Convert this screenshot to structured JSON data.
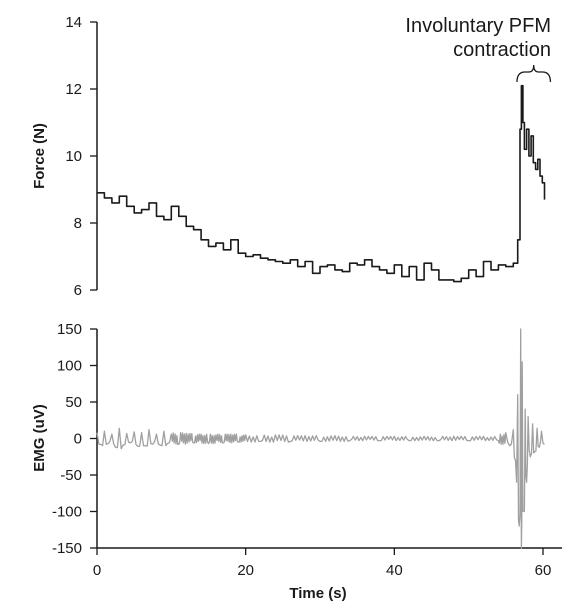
{
  "chart_data": [
    {
      "type": "line",
      "ylabel": "Force (N)",
      "xlabel": "",
      "xlim": [
        0,
        60
      ],
      "ylim": [
        6,
        14
      ],
      "yticks": [
        6,
        8,
        10,
        12,
        14
      ],
      "annotation": {
        "text_lines": [
          "Involuntary PFM",
          "contraction"
        ],
        "x_range": [
          56.5,
          61
        ]
      },
      "series": [
        {
          "color": "#1a1a1a",
          "x": [
            0,
            1,
            2,
            3,
            4,
            5,
            6,
            7,
            8,
            9,
            10,
            11,
            12,
            13,
            14,
            15,
            16,
            17,
            18,
            19,
            20,
            21,
            22,
            23,
            24,
            25,
            26,
            27,
            28,
            29,
            30,
            31,
            32,
            33,
            34,
            35,
            36,
            37,
            38,
            39,
            40,
            41,
            42,
            43,
            44,
            45,
            46,
            47,
            48,
            49,
            50,
            51,
            52,
            53,
            54,
            55,
            56,
            56.6,
            56.9,
            57.1,
            57.3,
            57.5,
            57.8,
            58.1,
            58.4,
            58.7,
            59,
            59.3,
            59.6,
            59.9,
            60.2
          ],
          "y": [
            8.9,
            8.75,
            8.6,
            8.8,
            8.5,
            8.3,
            8.4,
            8.6,
            8.2,
            8.1,
            8.5,
            8.2,
            7.9,
            7.8,
            7.5,
            7.3,
            7.4,
            7.2,
            7.5,
            7.1,
            7.0,
            7.05,
            6.95,
            6.9,
            6.85,
            6.8,
            6.9,
            6.7,
            6.85,
            6.5,
            6.7,
            6.75,
            6.6,
            6.55,
            6.8,
            6.75,
            6.9,
            6.7,
            6.6,
            6.5,
            6.75,
            6.4,
            6.7,
            6.3,
            6.8,
            6.6,
            6.3,
            6.3,
            6.25,
            6.35,
            6.6,
            6.4,
            6.85,
            6.6,
            6.75,
            6.7,
            6.8,
            7.5,
            10.8,
            12.1,
            11.0,
            10.2,
            10.8,
            10.0,
            10.6,
            9.8,
            9.6,
            9.9,
            9.4,
            9.2,
            8.7
          ]
        }
      ]
    },
    {
      "type": "line",
      "ylabel": "EMG (uV)",
      "xlabel": "Time (s)",
      "xlim": [
        0,
        60
      ],
      "ylim": [
        -150,
        150
      ],
      "yticks": [
        -150,
        -100,
        -50,
        0,
        50,
        100,
        150
      ],
      "xticks": [
        0,
        20,
        40,
        60
      ],
      "series": [
        {
          "color": "#a0a0a0",
          "x": [
            0,
            0.5,
            1,
            1.5,
            2,
            2.5,
            3,
            3.5,
            4,
            4.5,
            5,
            5.5,
            6,
            6.5,
            7,
            7.5,
            8,
            8.5,
            9,
            9.5,
            10,
            11,
            12,
            13,
            14,
            15,
            16,
            17,
            18,
            19,
            20,
            22,
            24,
            26,
            28,
            30,
            32,
            34,
            36,
            38,
            40,
            42,
            44,
            46,
            48,
            50,
            52,
            54,
            55,
            55.5,
            56,
            56.3,
            56.6,
            56.8,
            57.0,
            57.1,
            57.2,
            57.4,
            57.6,
            57.8,
            58.0,
            58.3,
            58.6,
            58.9,
            59.2,
            59.5,
            59.8,
            60.2
          ],
          "y": [
            8,
            -8,
            10,
            -7,
            6,
            -12,
            14,
            -9,
            7,
            -6,
            9,
            -11,
            8,
            -10,
            12,
            -8,
            6,
            -9,
            10,
            -7,
            6,
            -8,
            7,
            -6,
            6,
            -7,
            5,
            -6,
            6,
            -5,
            5,
            -4,
            5,
            -4,
            4,
            -4,
            4,
            -3,
            3,
            -3,
            3,
            -3,
            3,
            -3,
            3,
            -3,
            3,
            -3,
            8,
            -10,
            12,
            -30,
            60,
            -120,
            150,
            -150,
            105,
            -100,
            40,
            -60,
            30,
            -25,
            20,
            -18,
            14,
            -12,
            10,
            -8
          ]
        }
      ]
    }
  ]
}
